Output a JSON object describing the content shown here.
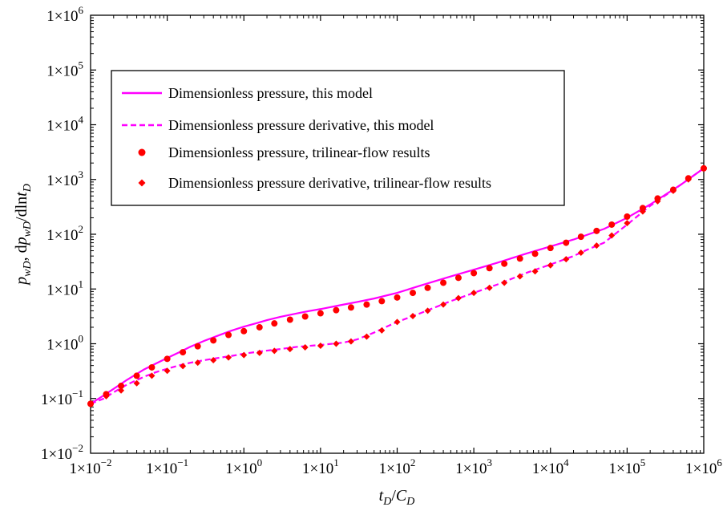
{
  "chart_data": {
    "type": "line",
    "xscale": "log",
    "yscale": "log",
    "xlim": [
      0.01,
      1000000
    ],
    "ylim": [
      0.01,
      1000000
    ],
    "grid": false,
    "legend_position": "upper-left",
    "x_ticks": [
      {
        "base": "1×10",
        "exp": "−2"
      },
      {
        "base": "1×10",
        "exp": "−1"
      },
      {
        "base": "1×10",
        "exp": "0"
      },
      {
        "base": "1×10",
        "exp": "1"
      },
      {
        "base": "1×10",
        "exp": "2"
      },
      {
        "base": "1×10",
        "exp": "3"
      },
      {
        "base": "1×10",
        "exp": "4"
      },
      {
        "base": "1×10",
        "exp": "5"
      },
      {
        "base": "1×10",
        "exp": "6"
      }
    ],
    "y_ticks": [
      {
        "base": "1×10",
        "exp": "−2"
      },
      {
        "base": "1×10",
        "exp": "−1"
      },
      {
        "base": "1×10",
        "exp": "0"
      },
      {
        "base": "1×10",
        "exp": "1"
      },
      {
        "base": "1×10",
        "exp": "2"
      },
      {
        "base": "1×10",
        "exp": "3"
      },
      {
        "base": "1×10",
        "exp": "4"
      },
      {
        "base": "1×10",
        "exp": "5"
      },
      {
        "base": "1×10",
        "exp": "6"
      }
    ],
    "xlabel": "tD/CD",
    "ylabel": "pwD, dpwD/dlntD",
    "series": [
      {
        "name": "Dimensionless pressure, this model",
        "style": "solid-line",
        "color": "#ff00ff",
        "x": [
          0.01,
          0.015,
          0.02,
          0.03,
          0.05,
          0.07,
          0.1,
          0.15,
          0.2,
          0.3,
          0.5,
          0.7,
          1,
          1.5,
          2,
          3,
          5,
          7,
          10,
          20,
          30,
          50,
          100,
          200,
          500,
          1000,
          2000,
          5000,
          10000,
          20000,
          50000,
          100000,
          200000,
          500000,
          1000000
        ],
        "y": [
          0.08,
          0.115,
          0.15,
          0.22,
          0.34,
          0.43,
          0.55,
          0.72,
          0.88,
          1.12,
          1.47,
          1.75,
          2.05,
          2.4,
          2.7,
          3.1,
          3.6,
          3.95,
          4.3,
          5.2,
          5.8,
          6.7,
          8.5,
          11.5,
          17,
          22.5,
          30,
          45,
          60,
          80,
          125,
          200,
          350,
          800,
          1600
        ]
      },
      {
        "name": "Dimensionless pressure derivative, this model",
        "style": "dashed-line",
        "color": "#ff00ff",
        "x": [
          0.01,
          0.015,
          0.02,
          0.03,
          0.05,
          0.07,
          0.1,
          0.15,
          0.2,
          0.3,
          0.5,
          0.7,
          1,
          2,
          3,
          5,
          10,
          20,
          30,
          50,
          70,
          100,
          200,
          500,
          1000,
          2000,
          5000,
          10000,
          20000,
          30000,
          50000,
          100000,
          200000,
          500000,
          1000000
        ],
        "y": [
          0.08,
          0.1,
          0.13,
          0.18,
          0.25,
          0.3,
          0.35,
          0.41,
          0.45,
          0.5,
          0.56,
          0.6,
          0.66,
          0.75,
          0.8,
          0.88,
          0.95,
          1.05,
          1.2,
          1.6,
          2.0,
          2.5,
          3.6,
          6.0,
          8.5,
          12,
          20,
          28,
          40,
          52,
          70,
          150,
          330,
          800,
          1600
        ]
      },
      {
        "name": "Dimensionless pressure, trilinear-flow results",
        "style": "circle-marker",
        "color": "#ff0000",
        "x": [
          0.01,
          0.016,
          0.025,
          0.04,
          0.063,
          0.1,
          0.16,
          0.25,
          0.4,
          0.63,
          1,
          1.6,
          2.5,
          4,
          6.3,
          10,
          16,
          25,
          40,
          63,
          100,
          160,
          250,
          400,
          630,
          1000,
          1600,
          2500,
          4000,
          6300,
          10000,
          16000,
          25000,
          40000,
          63000,
          100000,
          160000,
          250000,
          400000,
          630000,
          1000000
        ],
        "y": [
          0.08,
          0.12,
          0.17,
          0.26,
          0.37,
          0.53,
          0.7,
          0.9,
          1.15,
          1.45,
          1.7,
          2.0,
          2.35,
          2.75,
          3.15,
          3.6,
          4.1,
          4.6,
          5.2,
          6.0,
          7.0,
          8.5,
          10.5,
          13,
          16,
          19.5,
          24,
          29,
          36,
          44,
          56,
          70,
          90,
          115,
          150,
          210,
          300,
          450,
          650,
          1050,
          1600
        ]
      },
      {
        "name": "Dimensionless pressure derivative, trilinear-flow results",
        "style": "diamond-marker",
        "color": "#ff0000",
        "x": [
          0.01,
          0.016,
          0.025,
          0.04,
          0.063,
          0.1,
          0.16,
          0.25,
          0.4,
          0.63,
          1,
          1.6,
          2.5,
          4,
          6.3,
          10,
          16,
          25,
          40,
          63,
          100,
          160,
          250,
          400,
          630,
          1000,
          1600,
          2500,
          4000,
          6300,
          10000,
          16000,
          25000,
          40000,
          63000,
          100000,
          160000,
          250000,
          400000,
          630000,
          1000000
        ],
        "y": [
          0.08,
          0.11,
          0.14,
          0.19,
          0.26,
          0.32,
          0.39,
          0.45,
          0.5,
          0.56,
          0.62,
          0.68,
          0.74,
          0.8,
          0.86,
          0.92,
          1.0,
          1.1,
          1.35,
          1.75,
          2.5,
          3.2,
          4.0,
          5.2,
          6.8,
          8.5,
          10.5,
          13,
          17,
          21,
          27,
          35,
          46,
          62,
          95,
          160,
          260,
          400,
          620,
          1000,
          1600
        ]
      }
    ]
  }
}
